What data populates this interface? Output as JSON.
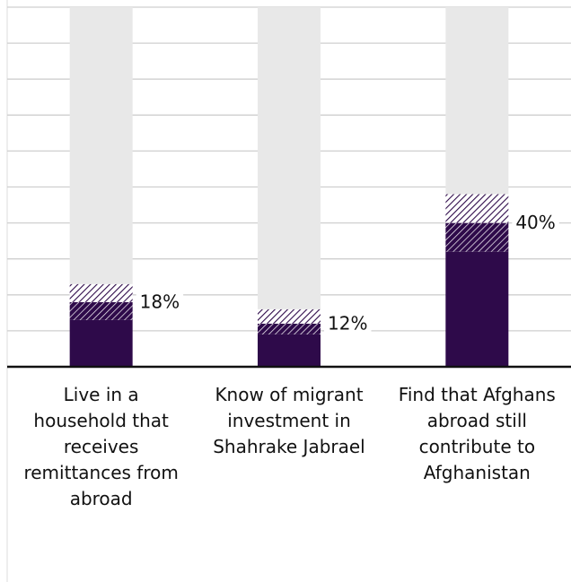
{
  "chart_data": {
    "type": "stacked_bar",
    "categories": [
      "Live in a household that receives remittances from abroad",
      "Know of migrant investment in Shahrake Jabrael",
      "Find that Afghans abroad still contribute to Afghanistan"
    ],
    "series": [
      {
        "color": "#2e0a4a",
        "pattern": "solid",
        "values": [
          13,
          9,
          32
        ]
      },
      {
        "color": "#2e0a4a",
        "pattern": "dense-hatch",
        "values": [
          5,
          3,
          8
        ]
      },
      {
        "color": "#2e0a4a",
        "pattern": "light-hatch",
        "values": [
          5,
          4,
          8
        ]
      },
      {
        "color": "#e8e8e8",
        "pattern": "solid",
        "values": [
          77,
          84,
          52
        ]
      }
    ],
    "data_labels": {
      "values": [
        18,
        12,
        40
      ],
      "value_labels": [
        "18%",
        "12%",
        "40%"
      ]
    },
    "ylim": [
      0,
      100
    ],
    "yticks": [
      0,
      10,
      20,
      30,
      40,
      50,
      60,
      70,
      80,
      90,
      100
    ],
    "grid": true
  }
}
